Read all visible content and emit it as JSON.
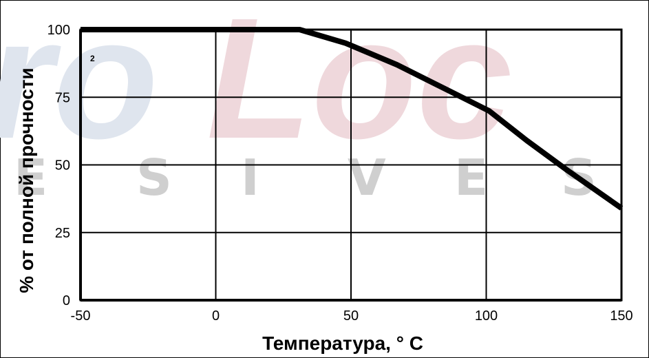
{
  "watermark": {
    "logo_text_blue": "ro",
    "logo_text_red": "Loc",
    "letters": [
      "E",
      "S",
      "I",
      "V",
      "E",
      "S"
    ],
    "colors": {
      "blue": "#dfe5ee",
      "red": "#efd8dc",
      "gray": "#cfcfcf"
    }
  },
  "chart_data": {
    "type": "line",
    "xlabel": "Температура, ° C",
    "ylabel": "% от полной прочности",
    "xlim": [
      -50,
      150
    ],
    "ylim": [
      0,
      100
    ],
    "x_ticks": [
      "-50",
      "0",
      "50",
      "100",
      "150"
    ],
    "y_ticks": [
      "0",
      "25",
      "50",
      "75",
      "100"
    ],
    "grid": true,
    "annotation": "2",
    "series": [
      {
        "color": "#000000",
        "x": [
          -50,
          31,
          48,
          67,
          85,
          101,
          115,
          130,
          150
        ],
        "y": [
          100,
          100,
          95,
          87,
          78,
          70,
          59,
          48,
          34
        ]
      }
    ]
  }
}
